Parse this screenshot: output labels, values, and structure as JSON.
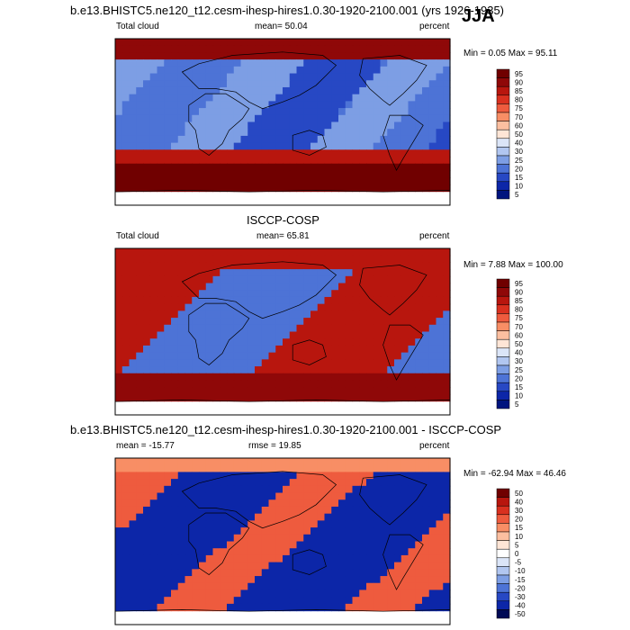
{
  "season": "JJA",
  "colors": {
    "warm": [
      "#ffffff",
      "#fee5d6",
      "#fcbfa0",
      "#f88e65",
      "#ee5b3e",
      "#d9301f",
      "#b8160e",
      "#8f0808",
      "#700000"
    ],
    "cool": [
      "#ffffff",
      "#dbe5f8",
      "#b1c6f0",
      "#7d9ee4",
      "#4d73d6",
      "#2748c4",
      "#0c26a8",
      "#00147e",
      "#000a55"
    ],
    "coastline": "#000000"
  },
  "chart_data": [
    {
      "type": "heatmap",
      "title": "b.e13.BHISTC5.ne120_t12.cesm-ihesp-hires1.0.30-1920-2100.001 (yrs 1926-1935)",
      "left_label": "Total cloud",
      "center_label": "mean=  50.04",
      "right_label": "percent",
      "stats_label": "Min =   0.05 Max =  95.11",
      "min": 0.05,
      "max": 95.11,
      "mean": 50.04,
      "colorbar_levels": [
        "95",
        "90",
        "85",
        "80",
        "75",
        "70",
        "60",
        "50",
        "40",
        "30",
        "25",
        "20",
        "15",
        "10",
        "5"
      ]
    },
    {
      "type": "heatmap",
      "title": "ISCCP-COSP",
      "left_label": "Total cloud",
      "center_label": "mean=  65.81",
      "right_label": "percent",
      "stats_label": "Min =   7.88 Max = 100.00",
      "min": 7.88,
      "max": 100.0,
      "mean": 65.81,
      "colorbar_levels": [
        "95",
        "90",
        "85",
        "80",
        "75",
        "70",
        "60",
        "50",
        "40",
        "30",
        "25",
        "20",
        "15",
        "10",
        "5"
      ]
    },
    {
      "type": "heatmap",
      "title": "b.e13.BHISTC5.ne120_t12.cesm-ihesp-hires1.0.30-1920-2100.001 - ISCCP-COSP",
      "left_label": "mean = -15.77",
      "center_label": "rmse =  19.85",
      "right_label": "percent",
      "stats_label": "Min = -62.94 Max =  46.46",
      "min": -62.94,
      "max": 46.46,
      "mean": -15.77,
      "rmse": 19.85,
      "colorbar_levels": [
        "50",
        "40",
        "30",
        "20",
        "15",
        "10",
        "5",
        "0",
        "-5",
        "-10",
        "-15",
        "-20",
        "-30",
        "-40",
        "-50"
      ]
    }
  ]
}
